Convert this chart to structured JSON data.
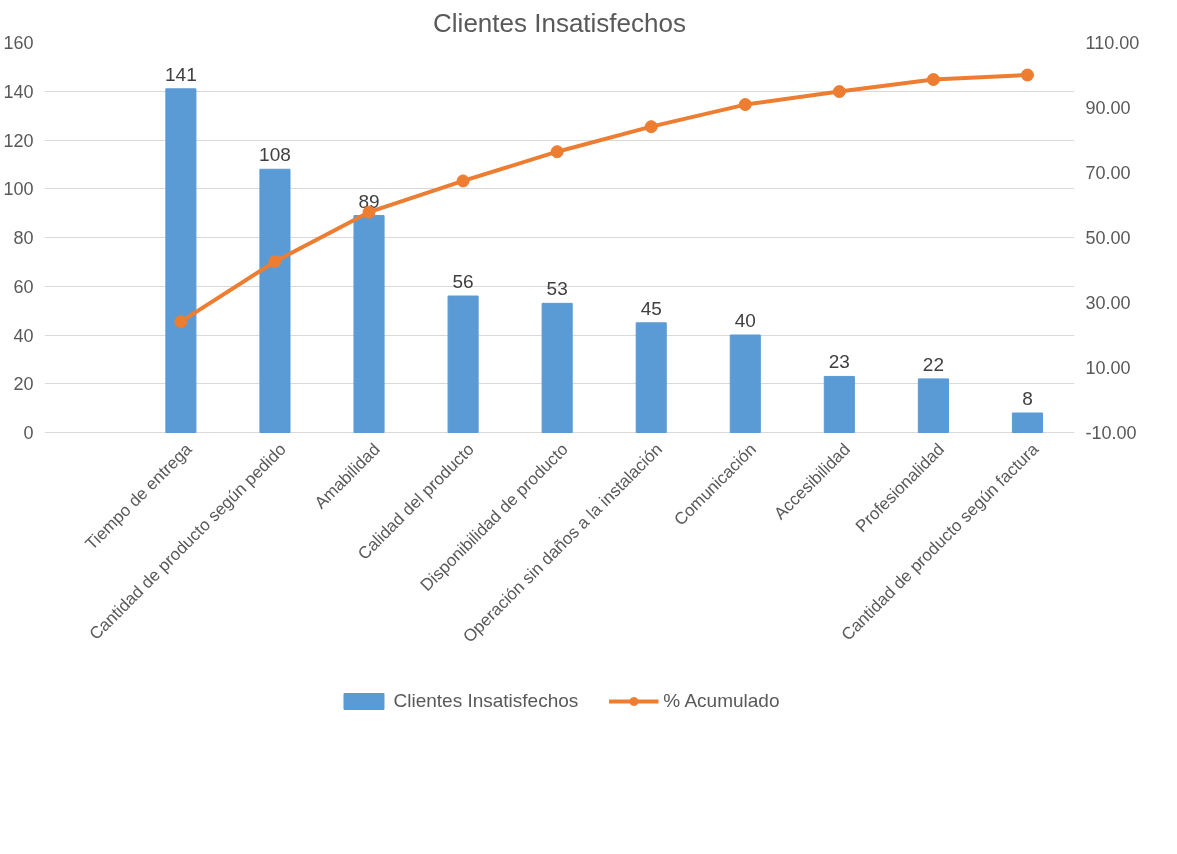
{
  "chart_data": {
    "type": "bar",
    "title": "Clientes Insatisfechos",
    "categories": [
      "Tiempo de entrega",
      "Cantidad de producto según pedido",
      "Amabilidad",
      "Calidad del producto",
      "Disponibilidad de producto",
      "Operación sin daños a la instalación",
      "Comunicación",
      "Accesibilidad",
      "Profesionalidad",
      "Cantidad de producto según factura"
    ],
    "series": [
      {
        "name": "Clientes Insatisfechos",
        "color": "#5b9bd5",
        "values": [
          141,
          108,
          89,
          56,
          53,
          45,
          40,
          23,
          22,
          8
        ],
        "value_labels": [
          "141",
          "108",
          "89",
          "56",
          "53",
          "45",
          "40",
          "23",
          "22",
          "8"
        ]
      },
      {
        "name": "% Acumulado",
        "type": "line",
        "axis": "y2",
        "color": "#ed7d31",
        "marker": "circle",
        "values": [
          24.1,
          42.6,
          57.8,
          67.4,
          76.4,
          84.1,
          90.9,
          94.9,
          98.6,
          100
        ]
      }
    ],
    "ylim": [
      0,
      160
    ],
    "yticks": [
      0,
      20,
      40,
      60,
      80,
      100,
      120,
      140,
      160
    ],
    "y2lim": [
      -10,
      110
    ],
    "y2ticks": [
      {
        "value": -10,
        "label": "-10.00"
      },
      {
        "value": 10,
        "label": "10.00"
      },
      {
        "value": 30,
        "label": "30.00"
      },
      {
        "value": 50,
        "label": "50.00"
      },
      {
        "value": 70,
        "label": "70.00"
      },
      {
        "value": 90,
        "label": "90.00"
      },
      {
        "value": 110,
        "label": "110.00"
      }
    ],
    "grid": "y",
    "legend": "bottom"
  }
}
